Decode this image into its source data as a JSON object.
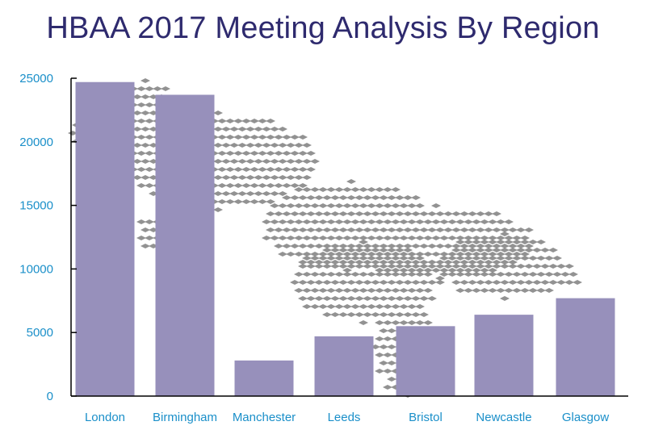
{
  "colors": {
    "title": "#2e2a6e",
    "bar": "#9790bb",
    "tick_label": "#1a8fc9",
    "axis": "#000000",
    "map_tiles": "#8c8c8c"
  },
  "icons": {
    "background": "uk-map-tile-mosaic"
  },
  "chart_data": {
    "type": "bar",
    "title": "HBAA 2017 Meeting Analysis By Region",
    "xlabel": "",
    "ylabel": "",
    "categories": [
      "London",
      "Birmingham",
      "Manchester",
      "Leeds",
      "Bristol",
      "Newcastle",
      "Glasgow"
    ],
    "values": [
      24700,
      23700,
      2800,
      4700,
      5500,
      6400,
      7700
    ],
    "ylim": [
      0,
      25000
    ],
    "yticks": [
      0,
      5000,
      10000,
      15000,
      20000,
      25000
    ],
    "grid": false,
    "legend": "none"
  }
}
